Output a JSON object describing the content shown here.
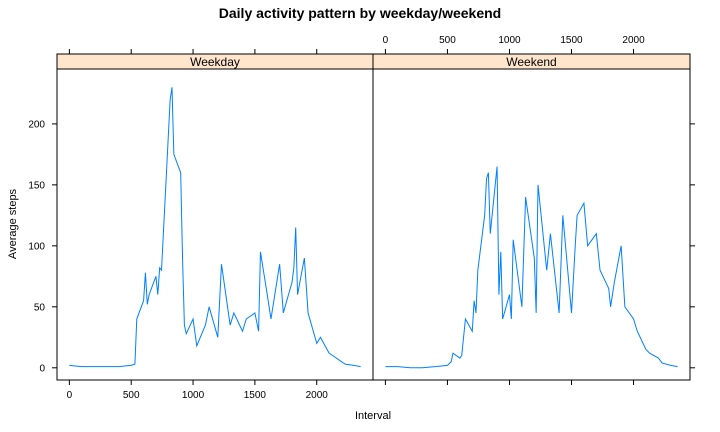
{
  "chart_data": {
    "type": "line",
    "title": "Daily activity pattern by weekday/weekend",
    "xlabel": "Interval",
    "ylabel": "Average steps",
    "xlim": [
      -100,
      2455
    ],
    "ylim": [
      -10,
      245
    ],
    "x_ticks": [
      0,
      500,
      1000,
      1500,
      2000
    ],
    "y_ticks": [
      0,
      50,
      100,
      150,
      200
    ],
    "line_color": "#0080ff",
    "strip_color": "#ffe5cc",
    "layout": "two panels side by side, shared axes, x ticks bottom-left panel and top-right panel, y ticks left side",
    "panels": [
      {
        "name": "Weekday",
        "x": [
          0,
          100,
          200,
          300,
          400,
          500,
          530,
          545,
          600,
          615,
          630,
          645,
          700,
          715,
          730,
          745,
          800,
          815,
          830,
          835,
          845,
          900,
          915,
          930,
          945,
          1000,
          1030,
          1100,
          1130,
          1200,
          1230,
          1300,
          1330,
          1400,
          1430,
          1500,
          1530,
          1545,
          1600,
          1630,
          1700,
          1730,
          1800,
          1815,
          1830,
          1845,
          1900,
          1930,
          2000,
          2030,
          2100,
          2130,
          2200,
          2230,
          2300,
          2355
        ],
        "y": [
          2,
          1,
          1,
          1,
          1,
          2,
          3,
          40,
          55,
          78,
          52,
          60,
          75,
          60,
          82,
          80,
          190,
          220,
          230,
          210,
          175,
          160,
          90,
          35,
          28,
          40,
          18,
          35,
          50,
          25,
          85,
          35,
          45,
          30,
          40,
          45,
          30,
          95,
          60,
          40,
          85,
          45,
          70,
          82,
          115,
          60,
          90,
          45,
          20,
          25,
          12,
          10,
          5,
          3,
          2,
          1
        ]
      },
      {
        "name": "Weekend",
        "x": [
          0,
          100,
          200,
          300,
          400,
          500,
          530,
          545,
          600,
          615,
          630,
          645,
          700,
          715,
          730,
          745,
          800,
          815,
          830,
          845,
          900,
          915,
          930,
          945,
          1000,
          1015,
          1030,
          1100,
          1130,
          1200,
          1215,
          1230,
          1300,
          1330,
          1400,
          1430,
          1500,
          1530,
          1545,
          1600,
          1630,
          1700,
          1730,
          1800,
          1815,
          1830,
          1845,
          1900,
          1930,
          2000,
          2030,
          2100,
          2130,
          2200,
          2230,
          2300,
          2355
        ],
        "y": [
          1,
          1,
          0,
          0,
          1,
          2,
          5,
          12,
          8,
          10,
          25,
          40,
          30,
          55,
          45,
          80,
          125,
          155,
          160,
          110,
          165,
          60,
          95,
          40,
          60,
          40,
          105,
          50,
          140,
          90,
          45,
          150,
          80,
          110,
          45,
          125,
          45,
          100,
          125,
          135,
          100,
          110,
          80,
          65,
          50,
          60,
          70,
          100,
          50,
          40,
          30,
          15,
          12,
          8,
          4,
          2,
          1
        ]
      }
    ]
  }
}
